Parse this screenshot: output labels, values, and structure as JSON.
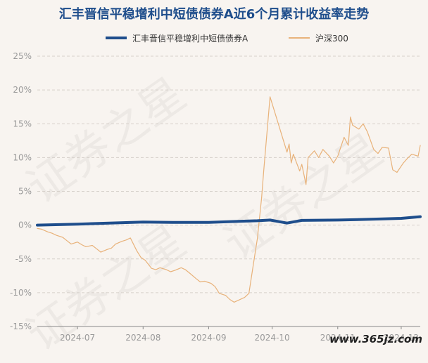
{
  "watermark_text": "证券之星",
  "site_mark": "www.365jz.com",
  "chart_data": {
    "type": "line",
    "title": "汇丰晋信平稳增利中短债债券A近6个月累计收益率走势",
    "legend_position": "top",
    "grid": true,
    "ylim": [
      -15,
      25
    ],
    "yticks": [
      25,
      20,
      15,
      10,
      5,
      0,
      -5,
      -10,
      -15
    ],
    "ytick_labels": [
      "25%",
      "20%",
      "15%",
      "10%",
      "5%",
      "0%",
      "-5%",
      "-10%",
      "-15%"
    ],
    "xlim": [
      "2024-06-12",
      "2024-12-10"
    ],
    "xticks": [
      "2024-07-01",
      "2024-08-01",
      "2024-09-01",
      "2024-10-01",
      "2024-11-01",
      "2024-12-01"
    ],
    "xtick_labels": [
      "2024-07",
      "2024-08",
      "2024-09",
      "2024-10",
      "2024-11",
      "2024-12"
    ],
    "series": [
      {
        "name": "汇丰晋信平稳增利中短债债券A",
        "color": "#1f4e8c",
        "x": [
          "2024-06-12",
          "2024-07-01",
          "2024-08-01",
          "2024-08-15",
          "2024-09-01",
          "2024-09-15",
          "2024-09-24",
          "2024-09-30",
          "2024-10-08",
          "2024-10-15",
          "2024-11-01",
          "2024-11-15",
          "2024-12-01",
          "2024-12-10"
        ],
        "values": [
          0.0,
          0.15,
          0.45,
          0.4,
          0.4,
          0.55,
          0.65,
          0.75,
          0.3,
          0.7,
          0.75,
          0.85,
          1.0,
          1.25
        ]
      },
      {
        "name": "沪深300",
        "color": "#e8b27a",
        "x": [
          "2024-06-12",
          "2024-06-14",
          "2024-06-17",
          "2024-06-19",
          "2024-06-21",
          "2024-06-24",
          "2024-06-26",
          "2024-06-28",
          "2024-07-01",
          "2024-07-03",
          "2024-07-05",
          "2024-07-08",
          "2024-07-10",
          "2024-07-12",
          "2024-07-15",
          "2024-07-17",
          "2024-07-19",
          "2024-07-22",
          "2024-07-24",
          "2024-07-26",
          "2024-07-29",
          "2024-07-31",
          "2024-08-02",
          "2024-08-05",
          "2024-08-07",
          "2024-08-09",
          "2024-08-12",
          "2024-08-14",
          "2024-08-16",
          "2024-08-19",
          "2024-08-21",
          "2024-08-23",
          "2024-08-26",
          "2024-08-28",
          "2024-08-30",
          "2024-09-02",
          "2024-09-04",
          "2024-09-06",
          "2024-09-09",
          "2024-09-11",
          "2024-09-13",
          "2024-09-18",
          "2024-09-20",
          "2024-09-23",
          "2024-09-24",
          "2024-09-25",
          "2024-09-26",
          "2024-09-27",
          "2024-09-30",
          "2024-10-08",
          "2024-10-09",
          "2024-10-10",
          "2024-10-11",
          "2024-10-14",
          "2024-10-15",
          "2024-10-16",
          "2024-10-17",
          "2024-10-18",
          "2024-10-21",
          "2024-10-23",
          "2024-10-25",
          "2024-10-28",
          "2024-10-30",
          "2024-11-01",
          "2024-11-04",
          "2024-11-06",
          "2024-11-07",
          "2024-11-08",
          "2024-11-11",
          "2024-11-13",
          "2024-11-15",
          "2024-11-18",
          "2024-11-20",
          "2024-11-22",
          "2024-11-25",
          "2024-11-27",
          "2024-11-29",
          "2024-12-02",
          "2024-12-04",
          "2024-12-06",
          "2024-12-09",
          "2024-12-10"
        ],
        "values": [
          -0.5,
          -0.6,
          -1.0,
          -1.2,
          -1.5,
          -1.8,
          -2.3,
          -2.8,
          -2.5,
          -2.9,
          -3.2,
          -3.0,
          -3.5,
          -4.0,
          -3.6,
          -3.4,
          -2.8,
          -2.4,
          -2.2,
          -1.9,
          -3.8,
          -4.8,
          -5.2,
          -6.4,
          -6.6,
          -6.3,
          -6.6,
          -6.9,
          -6.7,
          -6.3,
          -6.6,
          -7.1,
          -7.9,
          -8.4,
          -8.3,
          -8.6,
          -9.1,
          -10.1,
          -10.4,
          -11.0,
          -11.4,
          -10.7,
          -10.1,
          -4.0,
          -2.0,
          1.0,
          4.0,
          8.0,
          19.0,
          10.8,
          12.0,
          9.2,
          10.5,
          8.0,
          9.0,
          7.5,
          6.0,
          10.0,
          11.0,
          10.0,
          11.2,
          10.2,
          9.2,
          10.2,
          13.0,
          11.8,
          16.0,
          14.8,
          14.2,
          15.0,
          13.8,
          11.2,
          10.6,
          11.5,
          11.4,
          8.2,
          7.8,
          9.2,
          9.9,
          10.5,
          10.2,
          11.8
        ]
      }
    ]
  }
}
